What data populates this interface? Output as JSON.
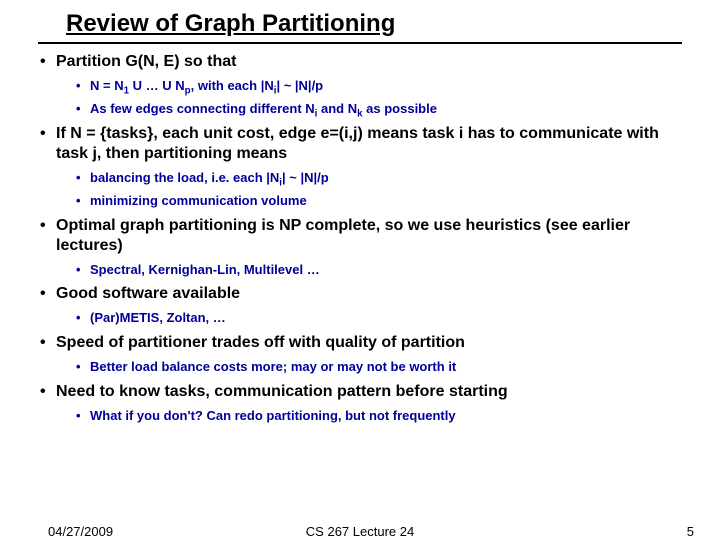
{
  "title": "Review of Graph Partitioning",
  "colors": {
    "text": "#000000",
    "subbullet": "#000099",
    "background": "#ffffff"
  },
  "bullets": [
    {
      "text": "Partition G(N, E) so that",
      "sub": [
        {
          "html": "N = N<sub>1</sub> U … U N<sub>p</sub>, with each |N<sub>i</sub>| ~ |N|/p"
        },
        {
          "html": "As few edges connecting different N<sub>i</sub> and N<sub>k</sub> as possible"
        }
      ]
    },
    {
      "text": "If N = {tasks}, each unit cost, edge e=(i,j) means task i has to communicate with task j, then partitioning means",
      "sub": [
        {
          "html": "balancing the load, i.e. each |N<sub>i</sub>| ~ |N|/p"
        },
        {
          "html": "minimizing communication volume"
        }
      ]
    },
    {
      "text": "Optimal graph partitioning is NP complete, so we use heuristics (see earlier lectures)",
      "sub": [
        {
          "html": "Spectral, Kernighan-Lin, Multilevel …"
        }
      ]
    },
    {
      "text": "Good software available",
      "sub": [
        {
          "html": "(Par)METIS, Zoltan, …"
        }
      ]
    },
    {
      "text": "Speed of partitioner trades off with quality of partition",
      "sub": [
        {
          "html": "Better load balance costs more; may or may not be worth it"
        }
      ]
    },
    {
      "text": "Need to know tasks, communication pattern before starting",
      "sub": [
        {
          "html": "What if you don't?  Can redo partitioning, but not frequently"
        }
      ]
    }
  ],
  "footer": {
    "date": "04/27/2009",
    "center": "CS 267 Lecture 24",
    "page": "5"
  }
}
